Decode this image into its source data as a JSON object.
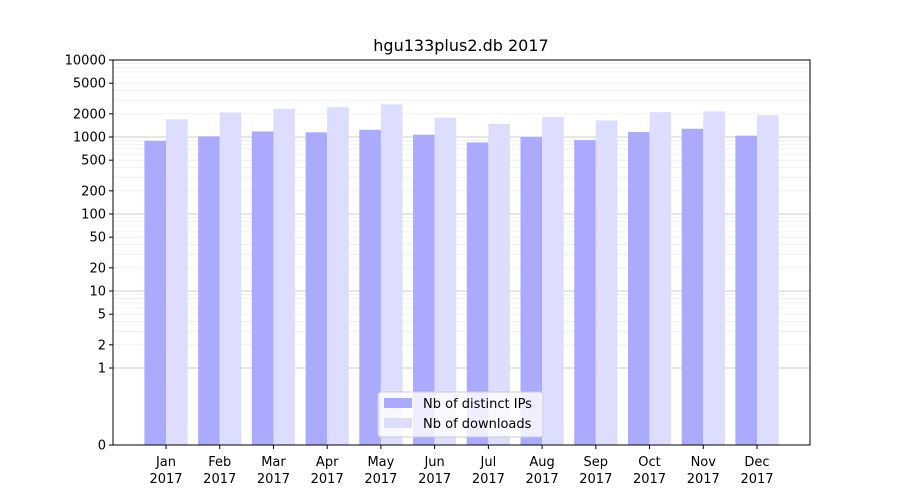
{
  "chart_data": {
    "type": "bar",
    "title": "hgu133plus2.db 2017",
    "xlabel": "",
    "ylabel": "",
    "y_scale": "symlog",
    "ylim": [
      0,
      10000
    ],
    "y_ticks": [
      0,
      1,
      2,
      5,
      10,
      20,
      50,
      100,
      200,
      500,
      1000,
      2000,
      5000,
      10000
    ],
    "y_tick_labels": [
      "0",
      "1",
      "2",
      "5",
      "10",
      "20",
      "50",
      "100",
      "200",
      "500",
      "1000",
      "2000",
      "5000",
      "10000"
    ],
    "categories": [
      [
        "Jan",
        "2017"
      ],
      [
        "Feb",
        "2017"
      ],
      [
        "Mar",
        "2017"
      ],
      [
        "Apr",
        "2017"
      ],
      [
        "May",
        "2017"
      ],
      [
        "Jun",
        "2017"
      ],
      [
        "Jul",
        "2017"
      ],
      [
        "Aug",
        "2017"
      ],
      [
        "Sep",
        "2017"
      ],
      [
        "Oct",
        "2017"
      ],
      [
        "Nov",
        "2017"
      ],
      [
        "Dec",
        "2017"
      ]
    ],
    "series": [
      {
        "name": "Nb of distinct IPs",
        "color": "#aaaaff",
        "values": [
          890,
          1020,
          1180,
          1150,
          1240,
          1070,
          850,
          1000,
          910,
          1160,
          1280,
          1040
        ]
      },
      {
        "name": "Nb of downloads",
        "color": "#ddddff",
        "values": [
          1700,
          2080,
          2330,
          2440,
          2650,
          1780,
          1480,
          1820,
          1640,
          2100,
          2150,
          1920
        ]
      }
    ],
    "grid": true,
    "legend_position": "lower-center"
  }
}
